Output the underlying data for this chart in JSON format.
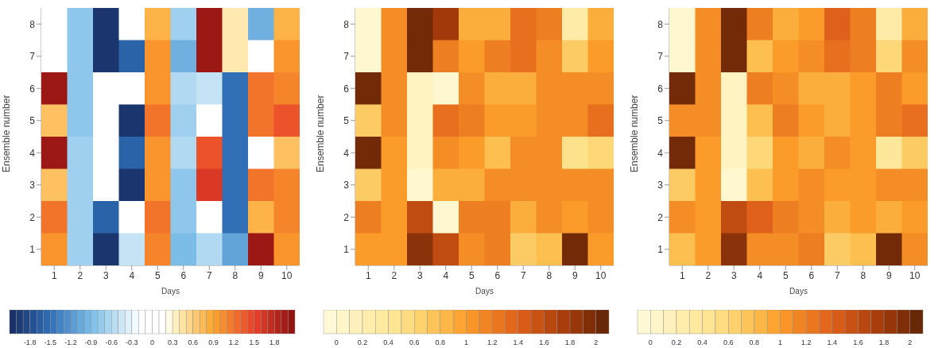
{
  "chart_data": [
    {
      "type": "heatmap",
      "xlabel": "Days",
      "ylabel": "Ensemble number",
      "categories": [
        "1",
        "2",
        "3",
        "4",
        "5",
        "6",
        "7",
        "8",
        "9",
        "10"
      ],
      "y_categories": [
        "8",
        "7",
        "6",
        "5",
        "4",
        "3",
        "2",
        "1"
      ],
      "cells": [
        [
          0,
          -0.8,
          -2.0,
          0,
          0.8,
          -0.7,
          2.0,
          0.4,
          -1.0,
          0.8
        ],
        [
          0,
          -0.8,
          -2.0,
          -1.6,
          1.0,
          -1.0,
          2.0,
          0.4,
          0,
          1.0
        ],
        [
          2.0,
          -0.8,
          0,
          0,
          1.0,
          -0.6,
          -0.5,
          -1.5,
          1.2,
          1.1
        ],
        [
          0.7,
          -0.8,
          0,
          -2.0,
          1.2,
          -0.7,
          0,
          -1.5,
          1.2,
          1.4
        ],
        [
          2.0,
          -0.7,
          0,
          -1.6,
          1.0,
          -0.6,
          1.4,
          -1.5,
          -0.2,
          0.7
        ],
        [
          0.7,
          -0.7,
          0,
          -2.0,
          1.0,
          -0.8,
          1.6,
          -1.5,
          1.2,
          1.1
        ],
        [
          1.2,
          -0.7,
          -1.6,
          0,
          1.2,
          -0.8,
          0,
          -1.5,
          0.8,
          1.1
        ],
        [
          1.0,
          -0.7,
          -2.0,
          -0.5,
          1.1,
          -0.9,
          -0.6,
          -1.1,
          2.0,
          1.0
        ]
      ],
      "clim": [
        -2.1,
        2.1
      ],
      "cticks": [
        -1.8,
        -1.5,
        -1.2,
        -0.9,
        -0.6,
        -0.3,
        0,
        0.3,
        0.6,
        0.9,
        1.2,
        1.5,
        1.8
      ]
    },
    {
      "type": "heatmap",
      "xlabel": "Days",
      "ylabel": "Ensemble number",
      "categories": [
        "1",
        "2",
        "3",
        "4",
        "5",
        "6",
        "7",
        "8",
        "9",
        "10"
      ],
      "y_categories": [
        "8",
        "7",
        "6",
        "5",
        "4",
        "3",
        "2",
        "1"
      ],
      "cells": [
        [
          0.0,
          1.1,
          2.0,
          1.8,
          0.9,
          0.9,
          1.3,
          1.2,
          0.3,
          0.9
        ],
        [
          0.0,
          1.1,
          2.0,
          1.2,
          1.0,
          1.2,
          1.3,
          1.1,
          0.7,
          1.0
        ],
        [
          2.0,
          1.1,
          0.1,
          0.0,
          1.1,
          0.9,
          0.9,
          1.1,
          1.1,
          1.1
        ],
        [
          0.7,
          1.1,
          0.1,
          1.3,
          1.2,
          1.0,
          1.0,
          1.1,
          1.1,
          1.3
        ],
        [
          2.0,
          1.0,
          0.1,
          1.1,
          1.0,
          0.8,
          1.1,
          1.1,
          0.5,
          0.6
        ],
        [
          0.7,
          1.0,
          0.0,
          0.9,
          0.9,
          1.1,
          1.1,
          1.1,
          1.1,
          1.1
        ],
        [
          1.2,
          1.0,
          1.6,
          0.0,
          1.2,
          1.2,
          0.9,
          1.1,
          1.0,
          1.1
        ],
        [
          1.0,
          1.0,
          1.9,
          1.6,
          1.1,
          1.2,
          0.7,
          0.8,
          2.0,
          1.0
        ]
      ],
      "clim": [
        -0.1,
        2.1
      ],
      "cticks": [
        0,
        0.2,
        0.4,
        0.6,
        0.8,
        1,
        1.2,
        1.4,
        1.6,
        1.8,
        2
      ]
    },
    {
      "type": "heatmap",
      "xlabel": "Days",
      "ylabel": "Ensemble number",
      "categories": [
        "1",
        "2",
        "3",
        "4",
        "5",
        "6",
        "7",
        "8",
        "9",
        "10"
      ],
      "y_categories": [
        "8",
        "7",
        "6",
        "5",
        "4",
        "3",
        "2",
        "1"
      ],
      "cells": [
        [
          0.0,
          1.1,
          2.0,
          1.2,
          0.9,
          1.0,
          1.4,
          1.2,
          0.3,
          0.9
        ],
        [
          0.0,
          1.1,
          2.0,
          0.8,
          1.0,
          1.1,
          1.3,
          1.2,
          0.6,
          1.1
        ],
        [
          2.0,
          1.1,
          0.1,
          1.2,
          1.1,
          0.9,
          0.9,
          1.0,
          1.2,
          1.0
        ],
        [
          1.1,
          1.1,
          0.1,
          0.8,
          1.2,
          1.0,
          0.9,
          1.0,
          1.2,
          1.3
        ],
        [
          2.0,
          1.0,
          0.1,
          0.6,
          1.0,
          0.9,
          1.1,
          1.0,
          0.4,
          0.7
        ],
        [
          0.7,
          1.0,
          0.0,
          0.8,
          1.0,
          1.1,
          1.0,
          1.0,
          1.1,
          1.1
        ],
        [
          1.1,
          1.0,
          1.6,
          1.4,
          1.2,
          1.1,
          0.9,
          1.0,
          0.9,
          1.0
        ],
        [
          0.8,
          1.0,
          1.9,
          1.1,
          1.1,
          1.2,
          0.7,
          0.8,
          2.0,
          1.1
        ]
      ],
      "clim": [
        -0.1,
        2.1
      ],
      "cticks": [
        0,
        0.2,
        0.4,
        0.6,
        0.8,
        1,
        1.2,
        1.4,
        1.6,
        1.8,
        2
      ]
    }
  ]
}
